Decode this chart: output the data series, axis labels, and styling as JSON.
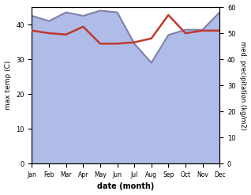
{
  "months": [
    "Jan",
    "Feb",
    "Mar",
    "Apr",
    "May",
    "Jun",
    "Jul",
    "Aug",
    "Sep",
    "Oct",
    "Nov",
    "Dec"
  ],
  "max_temp": [
    42.5,
    41.0,
    43.5,
    42.5,
    44.0,
    43.5,
    34.5,
    29.0,
    37.0,
    38.5,
    38.5,
    43.5
  ],
  "med_precip": [
    51.0,
    50.0,
    49.5,
    52.5,
    46.0,
    46.0,
    46.5,
    48.0,
    57.0,
    50.0,
    51.0,
    51.0
  ],
  "temp_color": "#c0392b",
  "precip_line_color": "#8080aa",
  "precip_fill_color": "#b0bce8",
  "ylabel_left": "max temp (C)",
  "ylabel_right": "med. precipitation (kg/m2)",
  "xlabel": "date (month)",
  "ylim_left": [
    0,
    45
  ],
  "ylim_right": [
    0,
    60
  ],
  "background_color": "#ffffff"
}
